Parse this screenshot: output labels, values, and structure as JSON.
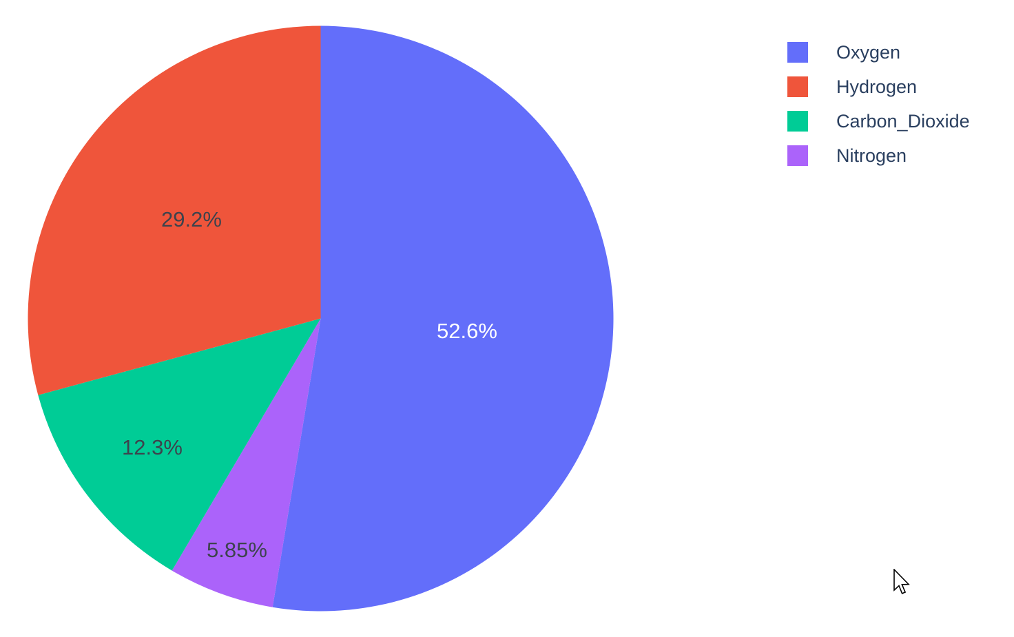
{
  "page": {
    "background_color": "#ffffff"
  },
  "chart_data": {
    "type": "pie",
    "title": "",
    "categories": [
      "Oxygen",
      "Hydrogen",
      "Carbon_Dioxide",
      "Nitrogen"
    ],
    "values": [
      52.6,
      29.2,
      12.3,
      5.85
    ],
    "slices": [
      {
        "name": "Oxygen",
        "value": 52.6,
        "percent_label": "52.6%",
        "color": "#636EFA",
        "label_color": "#ffffff"
      },
      {
        "name": "Hydrogen",
        "value": 29.2,
        "percent_label": "29.2%",
        "color": "#EF553B",
        "label_color": "#3d434d"
      },
      {
        "name": "Carbon_Dioxide",
        "value": 12.3,
        "percent_label": "12.3%",
        "color": "#00CC96",
        "label_color": "#3d434d"
      },
      {
        "name": "Nitrogen",
        "value": 5.85,
        "percent_label": "5.85%",
        "color": "#AB63FA",
        "label_color": "#3d434d"
      }
    ],
    "render_order": [
      0,
      3,
      2,
      1
    ],
    "rotation_deg": 0,
    "direction": "clockwise",
    "labels_position": "inside",
    "legend": {
      "position": "top-right",
      "orientation": "vertical",
      "text_color": "#2a3f5f",
      "entries": [
        "Oxygen",
        "Hydrogen",
        "Carbon_Dioxide",
        "Nitrogen"
      ]
    }
  }
}
